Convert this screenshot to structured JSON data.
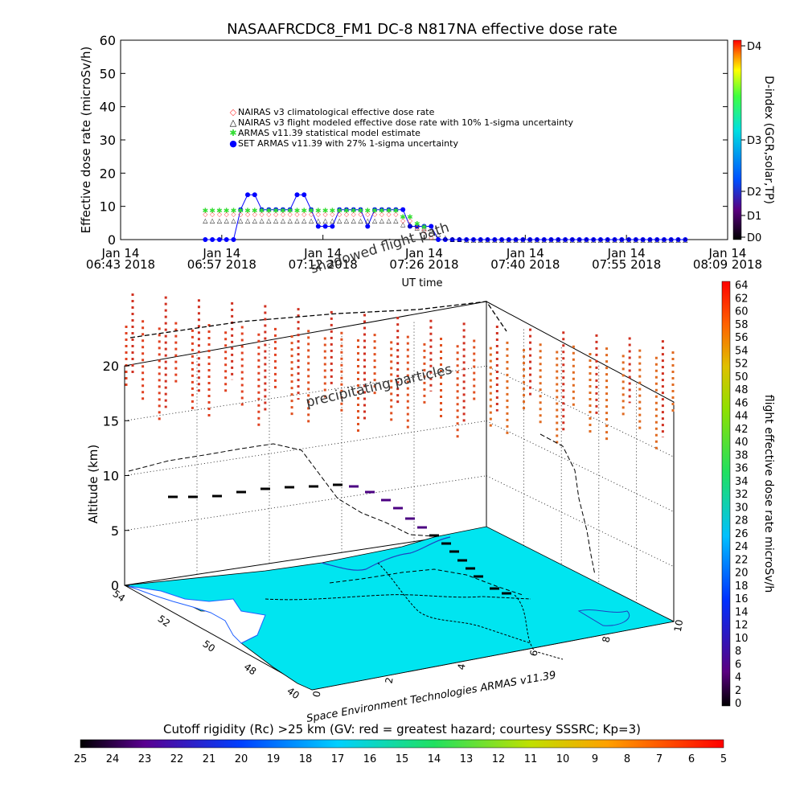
{
  "title": "NASAAFRCDC8_FM1 DC-8    N817NA effective dose rate",
  "colors": {
    "black": "#000000",
    "nairas_clim": "#ff4040",
    "nairas_flight": "#000000",
    "armas_stat": "#33dd33",
    "set_armas": "#0000ff",
    "map_fill": "#00e5f0",
    "grid": "#000000"
  },
  "chart_data": [
    {
      "type": "line",
      "id": "dose-timeseries",
      "ylabel": "Effective dose rate (microSv/h)",
      "xlabel": "UT time",
      "ylim": [
        0,
        60
      ],
      "yticks": [
        "0",
        "10",
        "20",
        "30",
        "40",
        "50",
        "60"
      ],
      "xtick_labels": [
        [
          "Jan 14",
          "06:43 2018"
        ],
        [
          "Jan 14",
          "06:57 2018"
        ],
        [
          "Jan 14",
          "07:12 2018"
        ],
        [
          "Jan 14",
          "07:26 2018"
        ],
        [
          "Jan 14",
          "07:40 2018"
        ],
        [
          "Jan 14",
          "07:55 2018"
        ],
        [
          "Jan 14",
          "08:09 2018"
        ]
      ],
      "legend": [
        {
          "marker": "◇",
          "label": "NAIRAS v3 climatological effective dose rate",
          "color": "#ff4040"
        },
        {
          "marker": "△",
          "label": "NAIRAS v3 flight modeled effective dose rate with 10% 1-sigma uncertainty",
          "color": "#000000"
        },
        {
          "marker": "✱",
          "label": "ARMAS v11.39 statistical model estimate",
          "color": "#33dd33"
        },
        {
          "marker": "●",
          "label": "SET ARMAS v11.39 with 27% 1-sigma uncertainty",
          "color": "#0000ff"
        }
      ],
      "x_minutes": [
        12,
        13,
        14,
        15,
        16,
        17,
        18,
        19,
        20,
        21,
        22,
        23,
        24,
        25,
        26,
        27,
        28,
        29,
        30,
        31,
        32,
        33,
        34,
        35,
        36,
        37,
        38,
        39,
        40,
        41,
        42,
        43,
        44,
        45,
        46,
        47,
        48,
        49,
        50,
        51,
        52,
        53,
        54,
        55,
        56,
        57,
        58,
        59,
        60,
        61,
        62,
        63,
        64,
        65,
        66,
        67,
        68,
        69,
        70,
        71,
        72,
        73,
        74,
        75,
        76,
        77,
        78,
        79,
        80
      ],
      "series": [
        {
          "name": "SET ARMAS v11.39 with 27% 1-sigma uncertainty",
          "values": [
            0,
            0,
            0,
            0,
            0,
            9,
            13.5,
            13.5,
            9,
            9,
            9,
            9,
            9,
            13.5,
            13.5,
            9,
            4,
            4,
            4,
            9,
            9,
            9,
            9,
            4,
            9,
            9,
            9,
            9,
            9,
            4,
            4,
            4,
            4,
            0,
            0,
            0,
            0,
            0,
            0,
            0,
            0,
            0,
            0,
            0,
            0,
            0,
            0,
            0,
            0,
            0,
            0,
            0,
            0,
            0,
            0,
            0,
            0,
            0,
            0,
            0,
            0,
            0,
            0,
            0,
            0,
            0,
            0,
            0,
            0
          ]
        },
        {
          "name": "NAIRAS v3 flight modeled effective dose rate with 10% 1-sigma uncertainty",
          "values": [
            6,
            6,
            6,
            6,
            6,
            6,
            6,
            6,
            6,
            6,
            6,
            6,
            6,
            6,
            6,
            6,
            6,
            6,
            6,
            6,
            6,
            6,
            6,
            6,
            6,
            6,
            6,
            6,
            5,
            5,
            4,
            4,
            3,
            2,
            1,
            0.5,
            0.5,
            0.3,
            0.3,
            0.2,
            0.2,
            0.2,
            0.2,
            0.2,
            0.2,
            0.2,
            0.2,
            0.2,
            0.2,
            0.2,
            0.2,
            0.2,
            0.2,
            0.2,
            0.2,
            0.2,
            0.2,
            0.2,
            0.2,
            0.2,
            0.2,
            0.2,
            0.2,
            0.2,
            0.2,
            0.2,
            0.2,
            0.2,
            0.2
          ]
        },
        {
          "name": "ARMAS v11.39 statistical model estimate",
          "values": [
            9,
            9,
            9,
            9,
            9,
            9,
            9,
            9,
            9,
            9,
            9,
            9,
            9,
            9,
            9,
            9,
            9,
            9,
            9,
            9,
            9,
            9,
            9,
            9,
            9,
            9,
            9,
            9,
            7,
            7,
            5,
            4,
            0,
            0,
            0,
            0,
            0,
            0,
            0,
            0,
            0,
            0,
            0,
            0,
            0,
            0,
            0,
            0,
            0,
            0,
            0,
            0,
            0,
            0,
            0,
            0,
            0,
            0,
            0,
            0,
            0,
            0,
            0,
            0,
            0,
            0,
            0,
            0,
            0
          ]
        },
        {
          "name": "NAIRAS v3 climatological effective dose rate",
          "values": [
            8,
            8,
            8,
            8,
            8,
            8,
            8,
            8,
            8,
            8,
            8,
            8,
            8,
            8,
            8,
            8,
            8,
            8,
            8,
            8,
            8,
            8,
            8,
            8,
            8,
            8,
            8,
            8,
            6,
            6,
            4,
            3,
            1,
            0,
            0,
            0,
            0,
            0,
            0,
            0,
            0,
            0,
            0,
            0,
            0,
            0,
            0,
            0,
            0,
            0,
            0,
            0,
            0,
            0,
            0,
            0,
            0,
            0,
            0,
            0,
            0,
            0,
            0,
            0,
            0,
            0,
            0,
            0,
            0
          ]
        }
      ]
    },
    {
      "type": "scatter",
      "id": "altitude-3d",
      "zlabel": "Altitude (km)",
      "zlim": [
        0,
        20
      ],
      "zticks": [
        "0",
        "5",
        "10",
        "15",
        "20"
      ],
      "lat_ticks": [
        "40",
        "48",
        "50",
        "52",
        "54"
      ],
      "lon_ticks": [
        "0",
        "2",
        "4",
        "6",
        "8",
        "10"
      ],
      "annotations": [
        "shadowed flight path",
        "precipitating particles"
      ],
      "credit": "Space Environment Technologies ARMAS v11.39"
    }
  ],
  "dindex_colorbar": {
    "label": "D-index (GCR,solar,TP)",
    "ticks": [
      "D4",
      "D3",
      "D2",
      "D1",
      "D0"
    ]
  },
  "dose_colorbar": {
    "label": "flight effective dose rate microSv/h",
    "ticks": [
      "64",
      "62",
      "60",
      "58",
      "56",
      "54",
      "52",
      "50",
      "48",
      "46",
      "44",
      "42",
      "40",
      "38",
      "36",
      "34",
      "32",
      "30",
      "28",
      "26",
      "24",
      "22",
      "20",
      "18",
      "16",
      "14",
      "12",
      "10",
      "8",
      "6",
      "4",
      "2",
      "0"
    ]
  },
  "rc_colorbar": {
    "title": "Cutoff rigidity (Rc) >25 km (GV: red = greatest hazard; courtesy SSSRC; Kp=3)",
    "ticks": [
      "25",
      "24",
      "23",
      "22",
      "21",
      "20",
      "19",
      "18",
      "17",
      "16",
      "15",
      "14",
      "13",
      "12",
      "11",
      "10",
      "9",
      "8",
      "7",
      "6",
      "5"
    ]
  }
}
